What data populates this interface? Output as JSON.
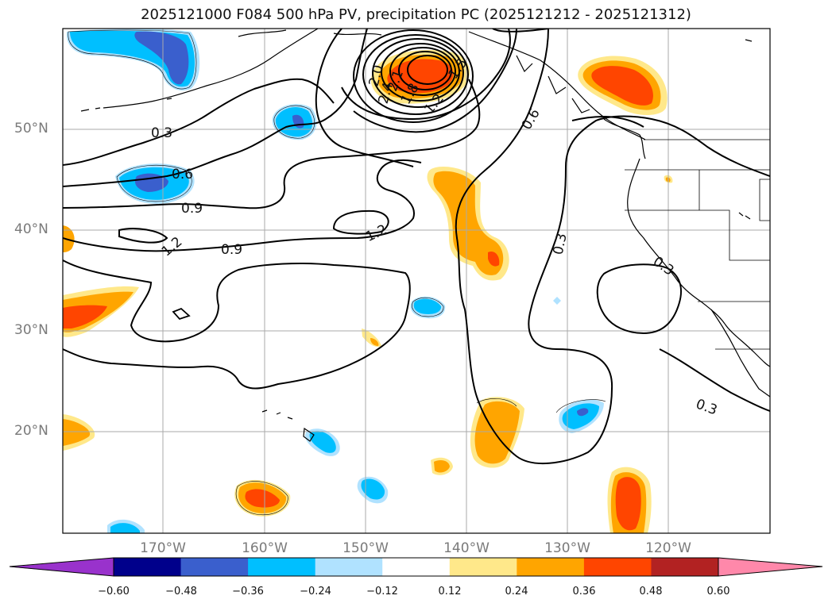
{
  "title": "2025121000 F084 500 hPa PV, precipitation PC (2025121212 - 2025121312)",
  "lat_labels": [
    "50°N",
    "40°N",
    "30°N",
    "20°N"
  ],
  "lon_labels": [
    "170°W",
    "160°W",
    "150°W",
    "140°W",
    "130°W",
    "120°W"
  ],
  "contour_labels": [
    "0.3",
    "0.6",
    "0.9",
    "1.2",
    "0.9",
    "1.2",
    "0.6",
    "0.3",
    "0.3",
    "0.3",
    "2.0",
    "2.4",
    "1.8",
    "2.1",
    "1.5",
    "1.2"
  ],
  "colorbar": {
    "tick_labels": [
      "−0.60",
      "−0.48",
      "−0.36",
      "−0.24",
      "−0.12",
      "0.12",
      "0.24",
      "0.36",
      "0.48",
      "0.60"
    ],
    "colors": [
      "#9932cc",
      "#00008b",
      "#3a5fcd",
      "#00bfff",
      "#b0e2ff",
      "#ffffff",
      "#ffe88a",
      "#ffa500",
      "#ff4500",
      "#b22222",
      "#ff88aa"
    ]
  },
  "colors": {
    "contour": "#000000",
    "grid": "#aaaaaa",
    "coast": "#000000"
  }
}
